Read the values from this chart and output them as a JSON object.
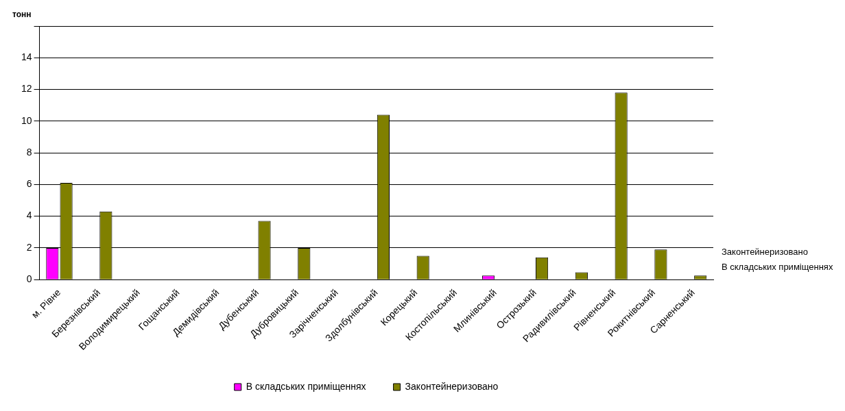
{
  "chart_data": {
    "type": "bar",
    "ylabel": "тонн",
    "categories": [
      "м. Рівне",
      "Березнівський",
      "Володимирецький",
      "Гощанський",
      "Демидівський",
      "Дубенський",
      "Дубровицький",
      "Зарічненський",
      "Здолбунівський",
      "Корецький",
      "Костопільський",
      "Млинівський",
      "Острозький",
      "Радивилівський",
      "Рівненський",
      "Рокитнівський",
      "Сарненський"
    ],
    "series": [
      {
        "name": "В складських приміщеннях",
        "color": "#ff00ff",
        "values": [
          2.0,
          null,
          null,
          null,
          null,
          null,
          null,
          null,
          null,
          null,
          null,
          0.26,
          null,
          null,
          null,
          null,
          null
        ]
      },
      {
        "name": "Законтейнеризовано",
        "color": "#808000",
        "values": [
          6.1,
          4.3,
          null,
          null,
          null,
          3.7,
          2.0,
          null,
          10.4,
          1.5,
          null,
          null,
          1.4,
          0.46,
          11.8,
          1.9,
          0.26
        ]
      }
    ],
    "ylim": [
      0,
      16
    ],
    "yticks": [
      0,
      2,
      4,
      6,
      8,
      10,
      12,
      14,
      {
        "value": 16,
        "label": null
      }
    ],
    "grid": "y",
    "legend": "bottom"
  }
}
